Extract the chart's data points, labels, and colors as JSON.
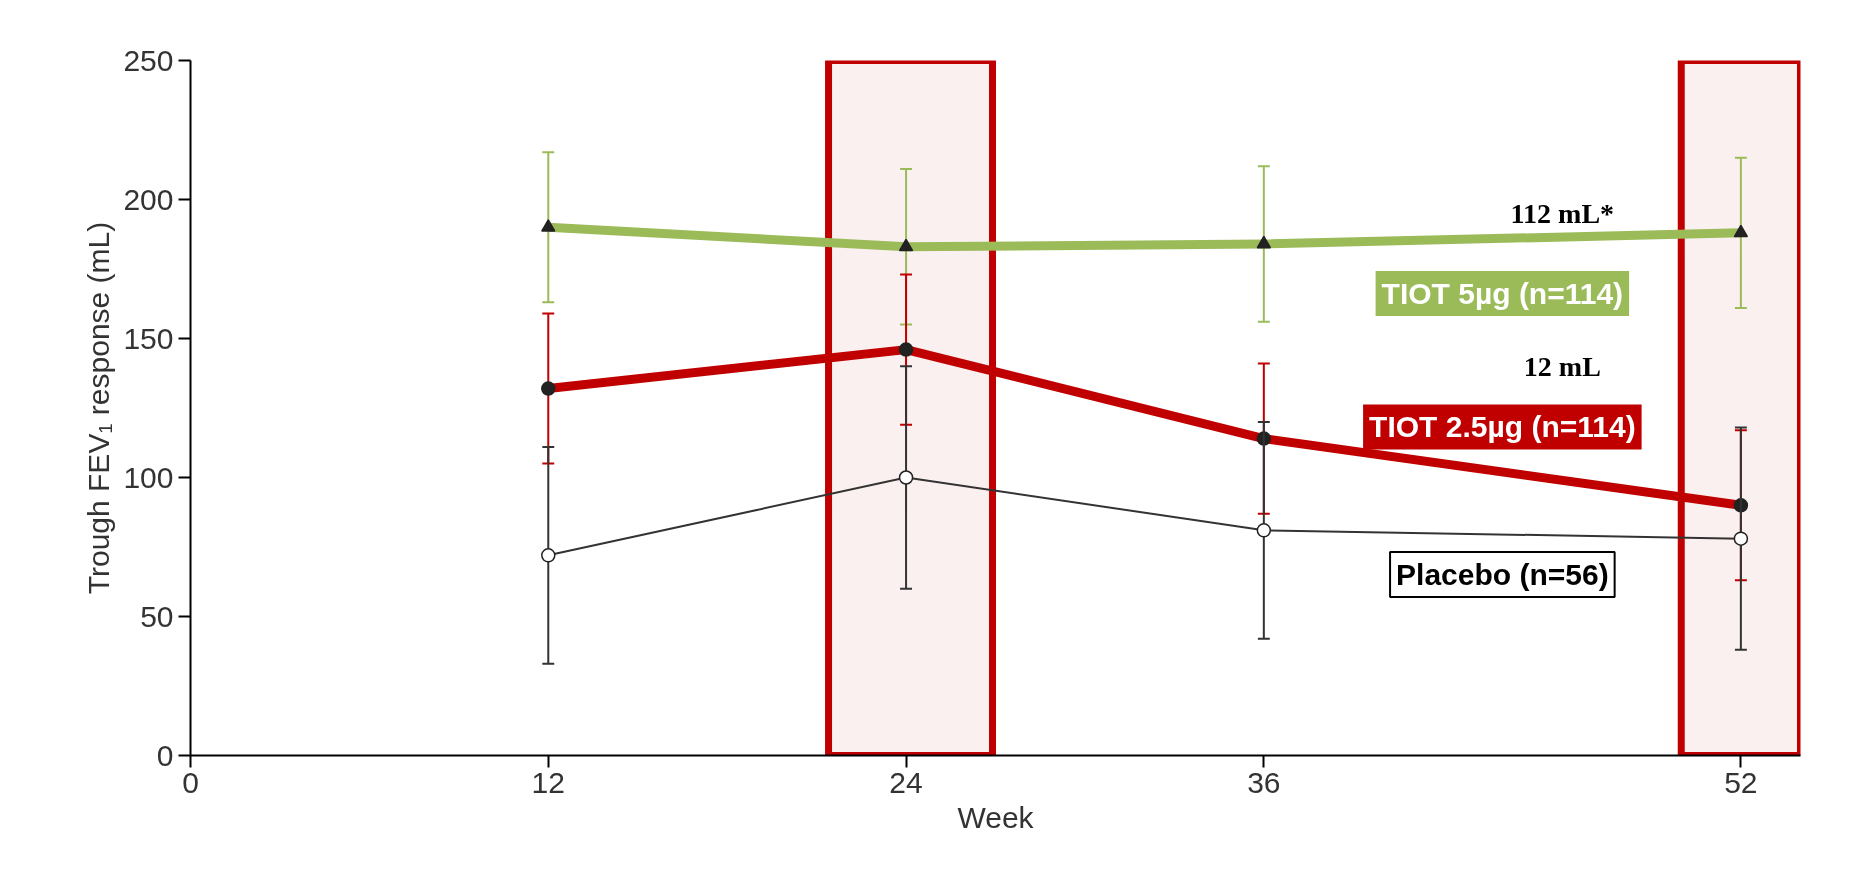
{
  "chart_data": {
    "type": "line",
    "xlabel": "Week",
    "ylabel": "Trough FEV₁ response (mL)",
    "x": [
      12,
      24,
      36,
      52
    ],
    "xlim": [
      0,
      54
    ],
    "xticks": [
      0,
      12,
      24,
      36,
      52
    ],
    "ylim": [
      0,
      250
    ],
    "yticks": [
      0,
      50,
      100,
      150,
      200,
      250
    ],
    "grid": false,
    "series": [
      {
        "name": "TIOT 5µg (n=114)",
        "color": "#9bbb59",
        "marker": "triangle",
        "values": [
          190,
          183,
          184,
          188
        ],
        "errors": [
          27,
          28,
          28,
          27
        ]
      },
      {
        "name": "TIOT 2.5µg (n=114)",
        "color": "#c00000",
        "marker": "circle",
        "values": [
          132,
          146,
          114,
          90
        ],
        "errors": [
          27,
          27,
          27,
          27
        ]
      },
      {
        "name": "Placebo (n=56)",
        "color": "#333333",
        "marker": "circle",
        "values": [
          72,
          100,
          81,
          78
        ],
        "errors": [
          39,
          40,
          39,
          40
        ]
      }
    ],
    "bands": [
      {
        "axis": "x",
        "from": 21.4,
        "to": 26.9,
        "color": "#c00000"
      },
      {
        "axis": "x",
        "from": 50.0,
        "to": 54,
        "color": "#c00000"
      }
    ],
    "annotations": [
      "112 mL*",
      "12 mL"
    ]
  }
}
